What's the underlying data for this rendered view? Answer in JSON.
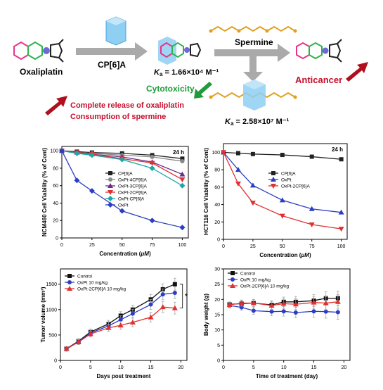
{
  "scheme": {
    "oxaliplatin_label": "Oxaliplatin",
    "host_label": "CP[6]A",
    "ka1_k": "K",
    "ka1_sub": "a",
    "ka1_value": " = 1.66×10⁴ M⁻¹",
    "spermine_label": "Spermine",
    "anticancer_label": "Anticancer",
    "cytotoxicity_label": "Cytotoxicity",
    "release_line1": "Complete release of oxaliplatin",
    "release_line2": "Consumption of spermine",
    "ka2_k": "K",
    "ka2_sub": "a",
    "ka2_value": " = 2.58×10⁷ M⁻¹",
    "colors": {
      "pink": "#e8338a",
      "green": "#2db34a",
      "red_text": "#c8102e",
      "green_text": "#1f9b3a",
      "host_blue": "#7fc6ee",
      "chain": "#e0a021"
    }
  },
  "chart_data": [
    {
      "type": "line",
      "panel_label": "24 h",
      "xlabel_prefix": "Concentration (",
      "xlabel_unit": "μM",
      "xlabel_suffix": ")",
      "ylabel": "NCM460 Cell Viability (% of Cont)",
      "xlim": [
        0,
        105
      ],
      "ylim": [
        0,
        105
      ],
      "xticks": [
        0,
        25,
        50,
        75,
        100
      ],
      "yticks": [
        0,
        20,
        40,
        60,
        80,
        100
      ],
      "x": [
        0,
        12.5,
        25,
        50,
        75,
        100
      ],
      "legend_position": "center-right",
      "series": [
        {
          "name": "CP[6]A",
          "color": "#222222",
          "marker": "square",
          "values": [
            100,
            99,
            98,
            97,
            95,
            91
          ]
        },
        {
          "name": "OxPt-4CP[6]A",
          "color": "#888888",
          "marker": "circle",
          "values": [
            100,
            98,
            97,
            95,
            93,
            88
          ]
        },
        {
          "name": "OxPt-3CP[6]A",
          "color": "#6a2c8e",
          "marker": "triangle",
          "values": [
            100,
            98,
            96,
            93,
            87,
            73
          ]
        },
        {
          "name": "OxPt-2CP[6]A",
          "color": "#e03030",
          "marker": "triangle-down",
          "values": [
            100,
            98,
            96,
            91,
            86,
            67
          ]
        },
        {
          "name": "OxPt-CP[6]A",
          "color": "#1aa8a8",
          "marker": "diamond",
          "values": [
            100,
            97,
            95,
            90,
            80,
            60
          ]
        },
        {
          "name": "OxPt",
          "color": "#2b3ec2",
          "marker": "diamond",
          "values": [
            100,
            66,
            54,
            31,
            20,
            12
          ]
        }
      ]
    },
    {
      "type": "line",
      "panel_label": "24 h",
      "xlabel_prefix": "Concentration (",
      "xlabel_unit": "μM",
      "xlabel_suffix": ")",
      "ylabel": "HCT116 Cell Viability (% of Cont)",
      "xlim": [
        0,
        105
      ],
      "ylim": [
        0,
        110
      ],
      "xticks": [
        0,
        25,
        50,
        75,
        100
      ],
      "yticks": [
        0,
        20,
        40,
        60,
        80,
        100
      ],
      "x": [
        0,
        12.5,
        25,
        50,
        75,
        100
      ],
      "legend_position": "center-right",
      "series": [
        {
          "name": "CP[6]A",
          "color": "#222222",
          "marker": "square",
          "values": [
            100,
            99,
            98,
            97,
            95,
            92
          ]
        },
        {
          "name": "OxPt",
          "color": "#2b3ec2",
          "marker": "triangle",
          "values": [
            100,
            80,
            62,
            45,
            35,
            31
          ]
        },
        {
          "name": "OxPt-2CP[6]A",
          "color": "#e03030",
          "marker": "triangle-down",
          "values": [
            100,
            64,
            42,
            27,
            17,
            12
          ]
        }
      ]
    },
    {
      "type": "line",
      "ylabel": "Tumor volume (mm³)",
      "xlabel": "Days post treatment",
      "xlim": [
        0,
        21
      ],
      "ylim": [
        0,
        1800
      ],
      "xticks": [
        0,
        5,
        10,
        15,
        20
      ],
      "yticks": [
        0,
        500,
        1000,
        1500
      ],
      "x": [
        1,
        3,
        5,
        8,
        10,
        12,
        15,
        17,
        19
      ],
      "legend_position": "top-left",
      "significance": "*",
      "series": [
        {
          "name": "Control",
          "color": "#111111",
          "marker": "square",
          "values": [
            230,
            380,
            560,
            720,
            880,
            1000,
            1200,
            1400,
            1500
          ]
        },
        {
          "name": "OxPt 10 mg/kg",
          "color": "#2b3ec2",
          "marker": "circle",
          "values": [
            220,
            370,
            540,
            680,
            800,
            920,
            1100,
            1300,
            1330
          ]
        },
        {
          "name": "OxPt-2CP[6]A 10 mg/kg",
          "color": "#e03030",
          "marker": "triangle",
          "values": [
            230,
            360,
            520,
            640,
            690,
            750,
            850,
            1050,
            1030
          ]
        }
      ]
    },
    {
      "type": "line",
      "ylabel": "Body weight (g)",
      "xlabel": "Time of treatment (day)",
      "xlim": [
        0,
        21
      ],
      "ylim": [
        0,
        30
      ],
      "xticks": [
        0,
        5,
        10,
        15,
        20
      ],
      "yticks": [
        0,
        5,
        10,
        15,
        20,
        25,
        30
      ],
      "x": [
        1,
        3,
        5,
        8,
        10,
        12,
        15,
        17,
        19
      ],
      "legend_position": "top-left",
      "series": [
        {
          "name": "Control",
          "color": "#111111",
          "marker": "square",
          "values": [
            18.4,
            18.6,
            18.8,
            18.2,
            19.2,
            19.2,
            19.6,
            20.4,
            20.4
          ]
        },
        {
          "name": "OxPt 10 mg/kg",
          "color": "#2b3ec2",
          "marker": "circle",
          "values": [
            18.0,
            17.4,
            16.3,
            16.0,
            16.1,
            15.7,
            16.1,
            16.0,
            15.8
          ]
        },
        {
          "name": "OxPt-2CP[6]A 10 mg/kg",
          "color": "#e03030",
          "marker": "triangle",
          "values": [
            18.2,
            18.8,
            18.8,
            18.0,
            18.6,
            18.4,
            19.0,
            18.8,
            19.2
          ]
        }
      ]
    }
  ]
}
